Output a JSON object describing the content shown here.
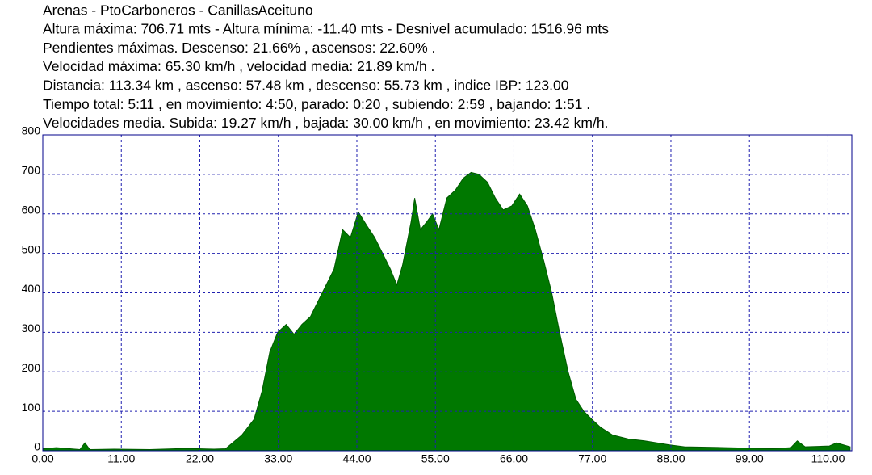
{
  "chart_data": {
    "type": "area",
    "title": "Arenas - PtoCarboneros - CanillasAceituno",
    "annotations": [
      "Altura máxima: 706.71 mts - Altura mínima: -11.40 mts - Desnivel acumulado: 1516.96 mts",
      "Pendientes máximas. Descenso: 21.66% , ascensos: 22.60% .",
      "Velocidad máxima: 65.30 km/h , velocidad media: 21.89 km/h .",
      "Distancia: 113.34 km , ascenso: 57.48 km , descenso: 55.73 km , indice IBP:  123.00",
      "Tiempo total: 5:11 , en movimiento: 4:50, parado: 0:20 , subiendo: 2:59 , bajando: 1:51 .",
      "Velocidades media. Subida: 19.27 km/h , bajada: 30.00 km/h , en movimiento: 23.42 km/h."
    ],
    "x": [
      0,
      1.9,
      5.2,
      5.9,
      6.6,
      10,
      15,
      20,
      24,
      25.6,
      27.9,
      29.6,
      30.7,
      31.8,
      32.9,
      34.1,
      35.2,
      36.3,
      37.5,
      38.6,
      39.7,
      40.8,
      42.0,
      43.1,
      44.2,
      45.4,
      46.5,
      47.6,
      48.7,
      49.6,
      50.4,
      51.6,
      52.1,
      52.9,
      53.8,
      54.6,
      55.5,
      56.6,
      57.8,
      58.9,
      60.0,
      61.1,
      62.3,
      63.4,
      64.5,
      65.7,
      66.8,
      67.9,
      69.0,
      70.2,
      71.3,
      72.4,
      73.6,
      74.7,
      75.8,
      76.9,
      78.1,
      79.8,
      82.0,
      84.3,
      87.7,
      89.9,
      95.6,
      102.3,
      104.8,
      105.7,
      106.8,
      110.2,
      111.2,
      113.1
    ],
    "values": [
      5,
      8,
      3,
      20,
      3,
      4,
      3,
      6,
      4,
      5,
      40,
      80,
      150,
      250,
      300,
      320,
      295,
      320,
      340,
      380,
      420,
      460,
      560,
      540,
      605,
      570,
      540,
      500,
      460,
      420,
      470,
      580,
      640,
      560,
      580,
      600,
      560,
      640,
      660,
      690,
      705,
      700,
      680,
      640,
      610,
      620,
      650,
      620,
      560,
      480,
      400,
      300,
      200,
      130,
      100,
      80,
      60,
      40,
      30,
      25,
      15,
      10,
      8,
      5,
      8,
      25,
      10,
      12,
      20,
      10
    ],
    "color": "#007800",
    "xlim": [
      0,
      113.34
    ],
    "ylim": [
      0,
      800
    ],
    "xticks": [
      {
        "value": 0,
        "label": "0.00"
      },
      {
        "value": 11,
        "label": "11.00"
      },
      {
        "value": 22,
        "label": "22.00"
      },
      {
        "value": 33,
        "label": "33.00"
      },
      {
        "value": 44,
        "label": "44.00"
      },
      {
        "value": 55,
        "label": "55.00"
      },
      {
        "value": 66,
        "label": "66.00"
      },
      {
        "value": 77,
        "label": "77.00"
      },
      {
        "value": 88,
        "label": "88.00"
      },
      {
        "value": 99,
        "label": "99.00"
      },
      {
        "value": 110,
        "label": "110.00"
      }
    ],
    "yticks": [
      0,
      100,
      200,
      300,
      400,
      500,
      600,
      700,
      800
    ],
    "grid": true
  }
}
